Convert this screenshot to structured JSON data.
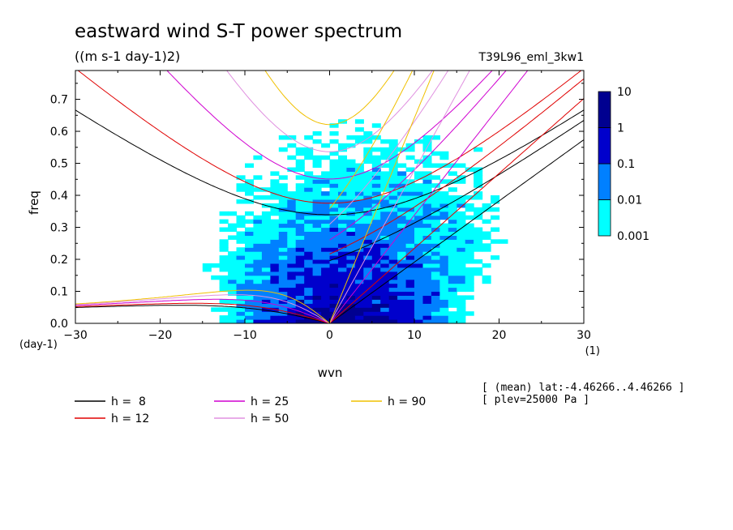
{
  "chart_data": {
    "type": "heatmap",
    "title": "eastward wind S-T power spectrum",
    "units": "((m s-1 day-1)2)",
    "run_name": "T39L96_eml_3kw1",
    "xlabel": "wvn",
    "ylabel": "freq",
    "x_unit": "(1)",
    "y_unit": "(day-1)",
    "xlim": [
      -30,
      30
    ],
    "ylim": [
      0,
      0.79
    ],
    "xticks": [
      "-30",
      "-20",
      "-10",
      "0",
      "10",
      "20",
      "30"
    ],
    "yticks": [
      "0.0",
      "0.1",
      "0.2",
      "0.3",
      "0.4",
      "0.5",
      "0.6",
      "0.7"
    ],
    "colorbar": {
      "levels": [
        "0.001",
        "0.01",
        "0.1",
        "1",
        "10"
      ],
      "colors": [
        "#00ffff",
        "#0080ff",
        "#0000cc",
        "#000090",
        "#4010a8"
      ]
    },
    "dispersion_curves": [
      {
        "name": "h =  8",
        "h": 8,
        "color": "#000000"
      },
      {
        "name": "h = 12",
        "h": 12,
        "color": "#e00000"
      },
      {
        "name": "h = 25",
        "h": 25,
        "color": "#d000d0"
      },
      {
        "name": "h = 50",
        "h": 50,
        "color": "#e090e0"
      },
      {
        "name": "h = 90",
        "h": 90,
        "color": "#f0c000"
      }
    ],
    "notes": [
      "[ (mean) lat:-4.46266..4.46266 ]",
      "[ plev=25000 Pa ]"
    ],
    "grid": false,
    "legend_position": "bottom-left"
  }
}
